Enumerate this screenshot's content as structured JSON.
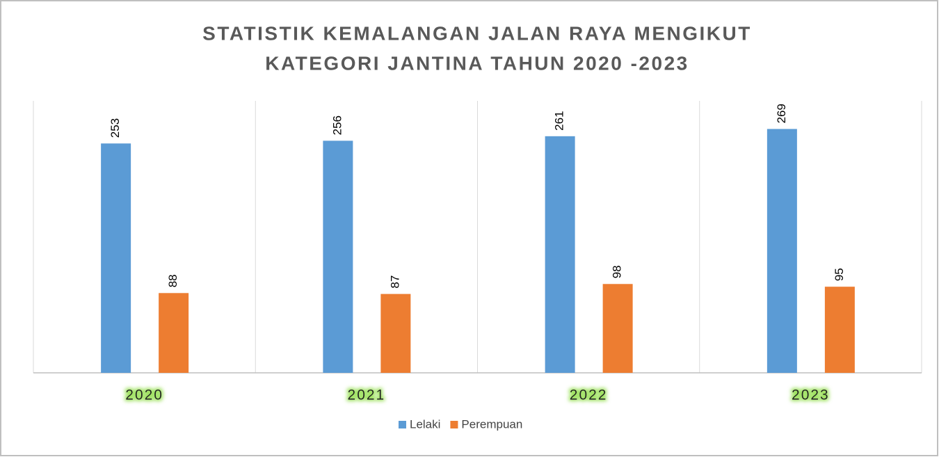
{
  "chart_data": {
    "type": "bar",
    "title": [
      "STATISTIK KEMALANGAN JALAN RAYA MENGIKUT",
      "KATEGORI JANTINA TAHUN 2020 -2023"
    ],
    "categories": [
      "2020",
      "2021",
      "2022",
      "2023"
    ],
    "series": [
      {
        "name": "Lelaki",
        "color": "#5b9bd5",
        "values": [
          253,
          256,
          261,
          269
        ]
      },
      {
        "name": "Perempuan",
        "color": "#ed7d31",
        "values": [
          88,
          87,
          98,
          95
        ]
      }
    ],
    "ylim": [
      0,
      300
    ],
    "grid": true,
    "legend": "bottom"
  }
}
